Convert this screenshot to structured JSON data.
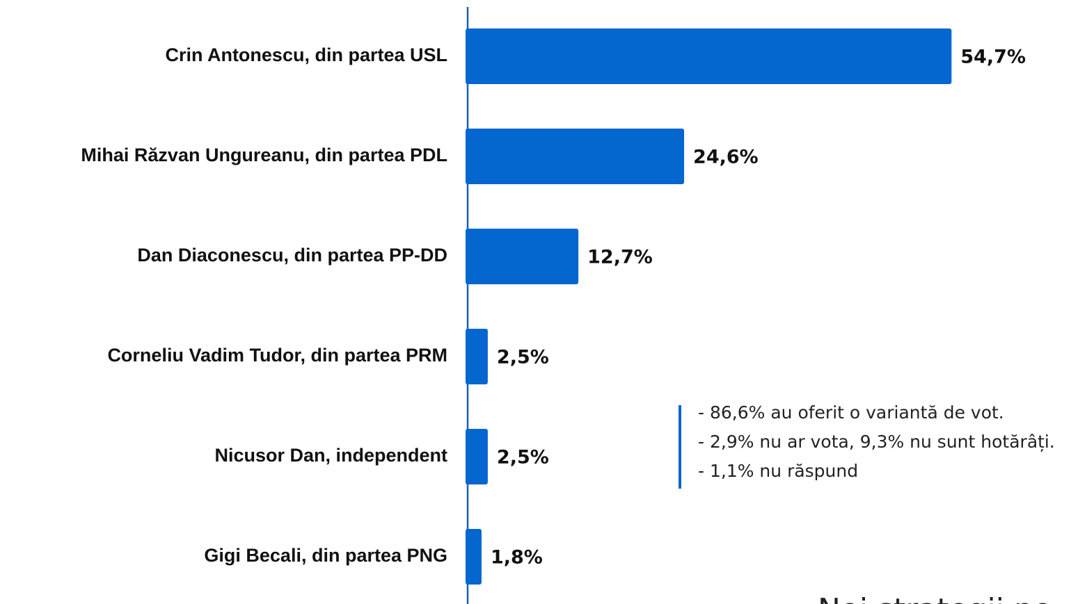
{
  "chart_data": {
    "type": "bar",
    "orientation": "horizontal",
    "categories": [
      "Crin Antonescu, din partea USL",
      "Mihai Răzvan Ungureanu, din partea PDL",
      "Dan Diaconescu, din partea PP-DD",
      "Corneliu Vadim Tudor, din partea PRM",
      "Nicusor Dan, independent",
      "Gigi Becali, din partea PNG"
    ],
    "values": [
      54.7,
      24.6,
      12.7,
      2.5,
      2.5,
      1.8
    ],
    "value_labels": [
      "54,7%",
      "24,6%",
      "12,7%",
      "2,5%",
      "2,5%",
      "1,8%"
    ],
    "color": "#0466cf",
    "xlim": [
      0,
      60
    ],
    "notes": [
      "- 86,6% au oferit o variantă de vot.",
      "- 2,9% nu ar vota, 9,3% nu sunt hotărâți.",
      "- 1,1% nu răspund"
    ],
    "footer": "Noi strategii po"
  }
}
